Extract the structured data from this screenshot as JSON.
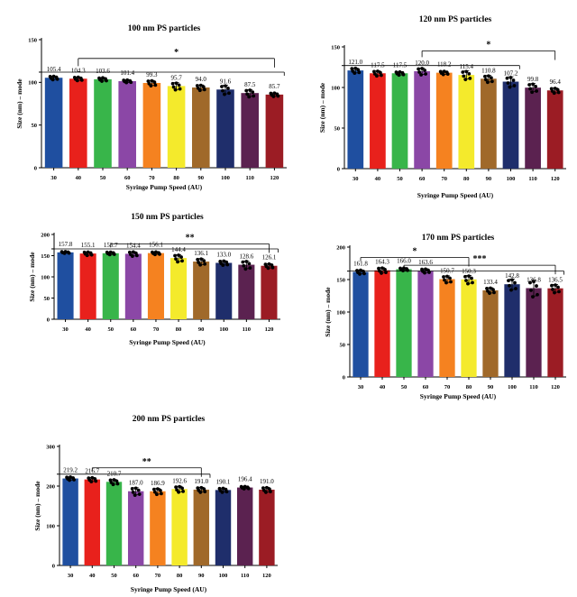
{
  "chart_data": [
    {
      "id": "p100",
      "type": "bar",
      "title": "100 nm PS particles",
      "xlabel": "Syringe Pump Speed (AU)",
      "ylabel": "Size (nm) – mode",
      "categories": [
        "30",
        "40",
        "50",
        "60",
        "70",
        "80",
        "90",
        "100",
        "110",
        "120"
      ],
      "values": [
        105.4,
        104.3,
        103.6,
        101.4,
        99.3,
        95.7,
        94.0,
        91.6,
        87.5,
        85.7
      ],
      "value_labels": [
        "105.4",
        "104.3",
        "103.6",
        "101.4",
        "99.3",
        "95.7",
        "94.0",
        "91.6",
        "87.5",
        "85.7"
      ],
      "errors": [
        2,
        2,
        2,
        1.5,
        3,
        4,
        3,
        5,
        4,
        2
      ],
      "ylim": [
        0,
        150
      ],
      "yticks": [
        "0",
        "50",
        "100",
        "150"
      ],
      "significance": [
        {
          "label": "*",
          "from": 1,
          "to": 9,
          "base": 128
        }
      ],
      "refline": {
        "from": 0,
        "to": 9,
        "y": 112
      },
      "tick_y": [
        112
      ]
    },
    {
      "id": "p120",
      "type": "bar",
      "title": "120 nm PS particles",
      "xlabel": "Syringe Pump Speed (AU)",
      "ylabel": "Size (nm) – mode",
      "categories": [
        "30",
        "40",
        "50",
        "60",
        "70",
        "80",
        "90",
        "100",
        "110",
        "120"
      ],
      "values": [
        121.0,
        117.5,
        117.5,
        120.0,
        118.2,
        115.4,
        110.8,
        107.2,
        99.8,
        96.4
      ],
      "value_labels": [
        "121.0",
        "117.5",
        "117.5",
        "120.0",
        "118.2",
        "115.4",
        "110.8",
        "107.2",
        "99.8",
        "96.4"
      ],
      "errors": [
        3,
        3,
        2,
        4,
        2,
        5,
        4,
        6,
        5,
        3
      ],
      "ylim": [
        0,
        150
      ],
      "yticks": [
        "0",
        "50",
        "100",
        "150"
      ],
      "significance": [
        {
          "label": "*",
          "from": 3,
          "to": 9,
          "base": 145
        }
      ],
      "refline": {
        "from": 0,
        "to": 7,
        "y": 127
      },
      "tick_y": [
        127
      ]
    },
    {
      "id": "p150",
      "type": "bar",
      "title": "150 nm PS particles",
      "xlabel": "Syringe Pump Speed (AU)",
      "ylabel": "Size (nm) – mode",
      "categories": [
        "30",
        "40",
        "50",
        "60",
        "70",
        "80",
        "90",
        "100",
        "110",
        "120"
      ],
      "values": [
        157.8,
        155.1,
        155.7,
        154.4,
        156.1,
        144.4,
        136.1,
        133.0,
        128.6,
        126.1
      ],
      "value_labels": [
        "157.8",
        "155.1",
        "155.7",
        "154.4",
        "156.1",
        "144.4",
        "136.1",
        "133.0",
        "128.6",
        "126.1"
      ],
      "errors": [
        2,
        4,
        3,
        5,
        3,
        8,
        7,
        5,
        9,
        5
      ],
      "ylim": [
        0,
        200
      ],
      "yticks": [
        "0",
        "50",
        "100",
        "150",
        "200"
      ],
      "significance": [
        {
          "label": "**",
          "from": 2,
          "to": 9,
          "base": 178
        }
      ],
      "refline": {
        "from": 0,
        "to": 9,
        "y": 166
      },
      "tick_y": [
        166
      ]
    },
    {
      "id": "p170",
      "type": "bar",
      "title": "170 nm PS particles",
      "xlabel": "Syringe Pump Speed (AU)",
      "ylabel": "Size (nm) – mode",
      "categories": [
        "30",
        "40",
        "50",
        "60",
        "70",
        "80",
        "90",
        "100",
        "110",
        "120"
      ],
      "values": [
        161.8,
        164.3,
        166.0,
        163.6,
        150.7,
        150.3,
        133.4,
        142.8,
        136.8,
        136.5
      ],
      "value_labels": [
        "161.8",
        "164.3",
        "166.0",
        "163.6",
        "150.7",
        "150.3",
        "133.4",
        "142.8",
        "136.8",
        "136.5"
      ],
      "errors": [
        3,
        4,
        2,
        3,
        5,
        6,
        4,
        8,
        12,
        6
      ],
      "ylim": [
        0,
        200
      ],
      "yticks": [
        "0",
        "50",
        "100",
        "150",
        "200"
      ],
      "significance": [
        {
          "label": "*",
          "from": 0,
          "to": 5,
          "base": 184
        },
        {
          "label": "***",
          "from": 2,
          "to": 9,
          "base": 172
        }
      ],
      "refline": {
        "from": 0,
        "to": 9,
        "y": 163
      },
      "tick_y": [
        163
      ]
    },
    {
      "id": "p200",
      "type": "bar",
      "title": "200 nm PS particles",
      "xlabel": "Syringe Pump Speed (AU)",
      "ylabel": "Size (nm) – mode",
      "categories": [
        "30",
        "40",
        "50",
        "60",
        "70",
        "80",
        "90",
        "100",
        "110",
        "120"
      ],
      "values": [
        219.2,
        216.7,
        210.7,
        187.0,
        186.9,
        192.6,
        191.0,
        190.1,
        196.4,
        191.0
      ],
      "value_labels": [
        "219.2",
        "216.7",
        "210.7",
        "187.0",
        "186.9",
        "192.6",
        "191.0",
        "190.1",
        "196.4",
        "191.0"
      ],
      "errors": [
        4,
        5,
        6,
        9,
        7,
        7,
        6,
        5,
        3,
        6
      ],
      "ylim": [
        0,
        300
      ],
      "yticks": [
        "0",
        "100",
        "200",
        "300"
      ],
      "significance": [
        {
          "label": "**",
          "from": 1,
          "to": 6,
          "base": 246
        }
      ],
      "refline": {
        "from": 0,
        "to": 6,
        "y": 230
      },
      "tick_y": [
        230
      ]
    }
  ],
  "colors": [
    "#1f4fa0",
    "#e8211c",
    "#38b54a",
    "#8b47a6",
    "#f58220",
    "#f4ea2c",
    "#a0692a",
    "#1f2e6b",
    "#5b2250",
    "#9b1c24"
  ]
}
